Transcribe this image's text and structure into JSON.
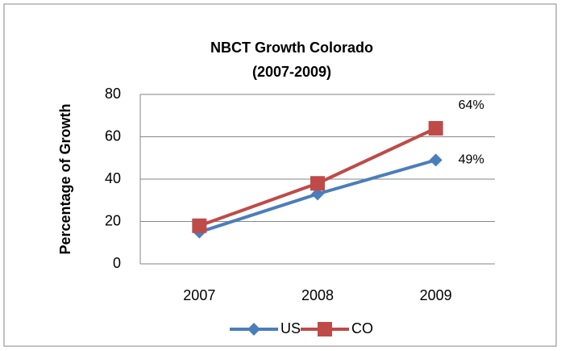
{
  "chart_data": {
    "type": "line",
    "title": "NBCT Growth Colorado",
    "subtitle": "(2007-2009)",
    "y_label": "Percentage of Growth",
    "categories": [
      "2007",
      "2008",
      "2009"
    ],
    "series": [
      {
        "name": "US",
        "color": "#4a7ebb",
        "marker": "diamond",
        "values": [
          15,
          33,
          49
        ],
        "value_labels": [
          null,
          null,
          "49%"
        ]
      },
      {
        "name": "CO",
        "color": "#be4b48",
        "marker": "square",
        "values": [
          18,
          38,
          64
        ],
        "value_labels": [
          null,
          null,
          "64%"
        ]
      }
    ],
    "ylim": [
      0,
      80
    ],
    "yticks": [
      0,
      20,
      40,
      60,
      80
    ],
    "grid": true,
    "legend": "bottom"
  }
}
